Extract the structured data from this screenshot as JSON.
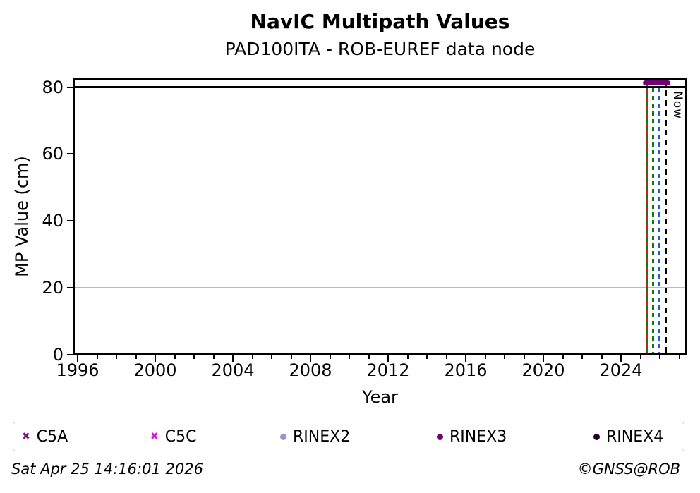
{
  "header": {
    "title": "NavIC Multipath Values",
    "subtitle": "PAD100ITA - ROB-EUREF data node"
  },
  "axes": {
    "x_label": "Year",
    "y_label": "MP Value (cm)"
  },
  "legend": {
    "items": [
      {
        "label": "C5A",
        "marker": "x",
        "color": "#7c107c"
      },
      {
        "label": "C5C",
        "marker": "x",
        "color": "#cc1acc"
      },
      {
        "label": "RINEX2",
        "marker": "circle",
        "color": "#9494d6"
      },
      {
        "label": "RINEX3",
        "marker": "circle",
        "color": "#730073"
      },
      {
        "label": "RINEX4",
        "marker": "circle",
        "color": "#26002e"
      }
    ]
  },
  "footer": {
    "timestamp": "Sat Apr 25 14:16:01 2026",
    "credit": "©GNSS@ROB"
  },
  "chart_data": {
    "type": "scatter",
    "title": "NavIC Multipath Values",
    "subtitle": "PAD100ITA - ROB-EUREF data node",
    "xlabel": "Year",
    "ylabel": "MP Value (cm)",
    "xlim": [
      1995.8,
      2027.4
    ],
    "ylim": [
      0,
      82.7
    ],
    "x_major_ticks": [
      1996,
      2000,
      2004,
      2008,
      2012,
      2016,
      2020,
      2024
    ],
    "x_minor_ticks_from": 1996,
    "x_minor_ticks_to": 2027,
    "x_minor_tick_step_years": 1,
    "y_ticks": [
      0,
      20,
      40,
      60,
      80
    ],
    "grid": "horizontal-only",
    "grid_color": "#bababa",
    "legend_position": "bottom",
    "series": [
      {
        "name": "C5A",
        "marker": "x",
        "color": "#7c107c"
      },
      {
        "name": "C5C",
        "marker": "x",
        "color": "#cc1acc"
      },
      {
        "name": "RINEX2",
        "marker": "circle",
        "color": "#9494d6"
      },
      {
        "name": "RINEX3",
        "marker": "circle",
        "color": "#730073"
      },
      {
        "name": "RINEX4",
        "marker": "circle",
        "color": "#26002e"
      }
    ],
    "visible_band": {
      "x_start": 2025.35,
      "x_end": 2026.31,
      "y_cm": 81.3,
      "rendered_color": "#730073",
      "description": "Dense overlapping multipath markers forming a horizontal purple band just above the 80 cm cap line"
    },
    "cap_line": {
      "y_cm": 80,
      "color": "#000000",
      "style": "solid"
    },
    "reference_lines": [
      {
        "name": "event-green-solid",
        "year": 2025.33,
        "color": "#0e7a0e",
        "style": "solid"
      },
      {
        "name": "event-red-dashed",
        "year": 2025.33,
        "color": "#d41a1a",
        "style": "dashed",
        "dash_on": 6,
        "dash_off": 6
      },
      {
        "name": "event-green-dashed",
        "year": 2025.65,
        "color": "#0e7a0e",
        "style": "dashed",
        "dash_on": 6,
        "dash_off": 5
      },
      {
        "name": "event-blue-dashed",
        "year": 2025.95,
        "color": "#1560e0",
        "style": "dashed",
        "dash_on": 6,
        "dash_off": 5
      },
      {
        "name": "now-line",
        "year": 2026.31,
        "color": "#000000",
        "style": "dashed",
        "dash_on": 8,
        "dash_off": 6
      }
    ],
    "annotations": [
      {
        "text": "Now",
        "x_year": 2026.31,
        "rotation": 90
      }
    ]
  }
}
